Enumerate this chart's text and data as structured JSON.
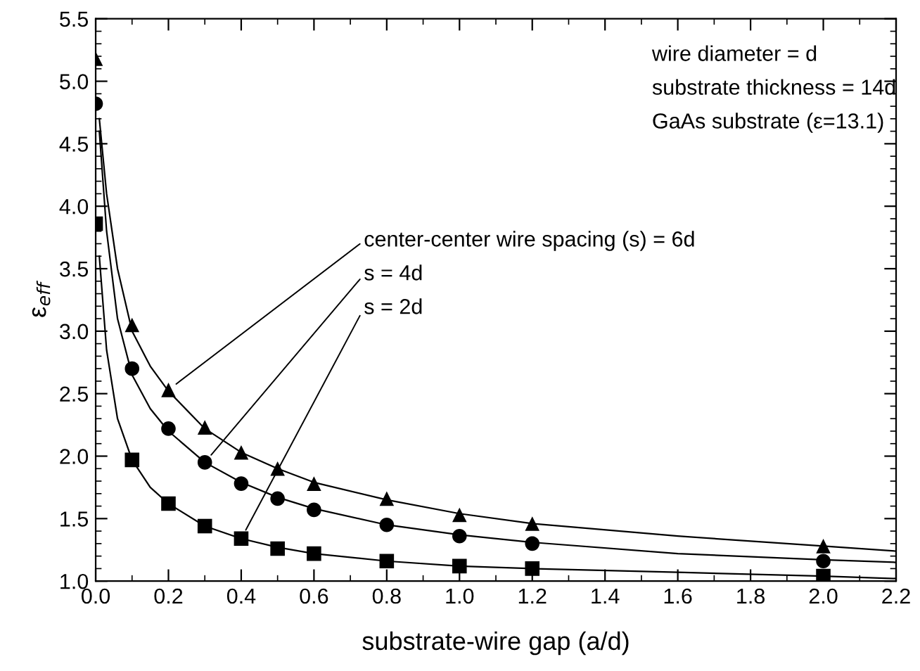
{
  "chart_data": {
    "type": "scatter",
    "xlabel": "substrate-wire gap (a/d)",
    "ylabel": "ε$_{eff}$",
    "xlim": [
      0.0,
      2.2
    ],
    "ylim": [
      1.0,
      5.5
    ],
    "xticks": [
      {
        "value": 0.0,
        "label": "0.0"
      },
      0.2,
      0.4,
      0.6,
      0.8,
      {
        "value": 1.0,
        "label": "1.0"
      },
      1.2,
      1.4,
      1.6,
      1.8,
      {
        "value": 2.0,
        "label": "2.0"
      },
      2.2
    ],
    "yticks": [
      {
        "value": 1.0,
        "label": "1.0"
      },
      1.5,
      {
        "value": 2.0,
        "label": "2.0"
      },
      2.5,
      {
        "value": 3.0,
        "label": "3.0"
      },
      3.5,
      {
        "value": 4.0,
        "label": "4.0"
      },
      4.5,
      {
        "value": 5.0,
        "label": "5.0"
      },
      5.5
    ],
    "x": [
      0.0,
      0.1,
      0.2,
      0.3,
      0.4,
      0.5,
      0.6,
      0.8,
      1.0,
      1.2,
      2.0
    ],
    "series": [
      {
        "color": "#000000",
        "marker": "triangle",
        "values": [
          5.18,
          3.05,
          2.53,
          2.23,
          2.03,
          1.9,
          1.78,
          1.66,
          1.53,
          1.46,
          1.28
        ]
      },
      {
        "color": "#000000",
        "marker": "circle",
        "values": [
          4.82,
          2.7,
          2.22,
          1.95,
          1.78,
          1.66,
          1.57,
          1.45,
          1.36,
          1.3,
          1.16
        ]
      },
      {
        "color": "#000000",
        "marker": "square",
        "values": [
          3.86,
          1.97,
          1.62,
          1.44,
          1.34,
          1.26,
          1.22,
          1.16,
          1.12,
          1.1,
          1.04
        ]
      },
      {
        "type": "line",
        "color": "#000000",
        "x": [
          0.01,
          0.03,
          0.06,
          0.1,
          0.15,
          0.2,
          0.3,
          0.4,
          0.5,
          0.6,
          0.8,
          1.0,
          1.2,
          1.6,
          2.0,
          2.2
        ],
        "values": [
          4.7,
          4.1,
          3.5,
          3.0,
          2.72,
          2.52,
          2.22,
          2.03,
          1.9,
          1.79,
          1.65,
          1.54,
          1.46,
          1.36,
          1.28,
          1.24
        ]
      },
      {
        "type": "line",
        "color": "#000000",
        "x": [
          0.01,
          0.03,
          0.06,
          0.1,
          0.15,
          0.2,
          0.3,
          0.4,
          0.5,
          0.6,
          0.8,
          1.0,
          1.2,
          1.6,
          2.0,
          2.2
        ],
        "values": [
          4.6,
          3.8,
          3.1,
          2.65,
          2.38,
          2.2,
          1.95,
          1.79,
          1.67,
          1.58,
          1.45,
          1.37,
          1.31,
          1.22,
          1.17,
          1.15
        ]
      },
      {
        "type": "line",
        "color": "#000000",
        "x": [
          0.01,
          0.03,
          0.06,
          0.1,
          0.15,
          0.2,
          0.3,
          0.4,
          0.5,
          0.6,
          0.8,
          1.0,
          1.2,
          1.6,
          2.0,
          2.2
        ],
        "values": [
          3.6,
          2.85,
          2.3,
          1.97,
          1.75,
          1.62,
          1.44,
          1.34,
          1.27,
          1.22,
          1.16,
          1.12,
          1.1,
          1.07,
          1.04,
          1.02
        ]
      }
    ],
    "annotations": [
      "wire diameter = d",
      "substrate thickness = 14d",
      "GaAs substrate (ε=13.1)",
      {
        "text": "center-center wire spacing (s) = 6d",
        "x": 0.2,
        "y": 2.53
      },
      {
        "text": "s = 4d",
        "x": 0.3,
        "y": 1.95
      },
      {
        "text": "s = 2d",
        "x": 0.4,
        "y": 1.34
      }
    ]
  }
}
